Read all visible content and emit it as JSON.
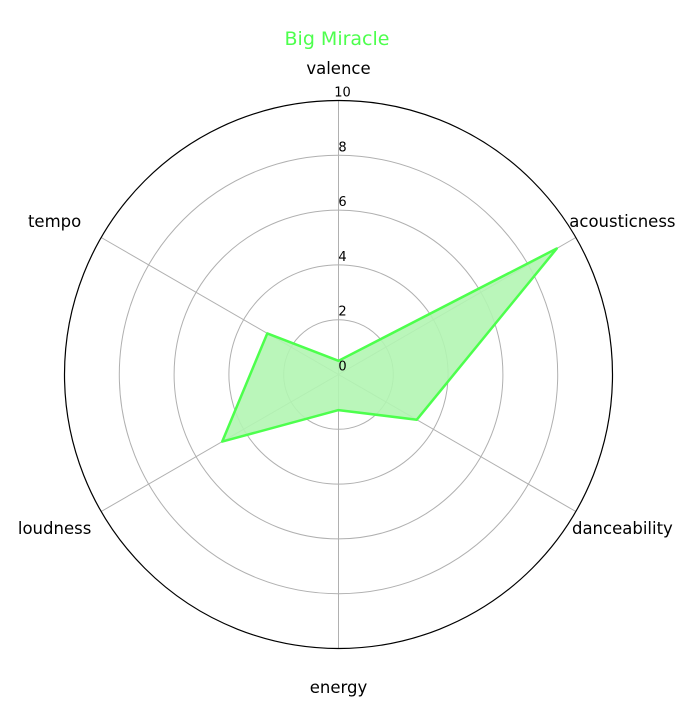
{
  "chart_data": {
    "type": "radar",
    "title": "Big Miracle",
    "axes": [
      "valence",
      "acousticness",
      "danceability",
      "energy",
      "loudness",
      "tempo"
    ],
    "series": [
      {
        "values": [
          0.5,
          9.2,
          3.3,
          1.3,
          4.9,
          3.0
        ]
      }
    ],
    "rmax": 10,
    "ticks": [
      "0",
      "2",
      "4",
      "6",
      "8",
      "10"
    ],
    "tick_values": [
      0,
      2,
      4,
      6,
      8,
      10
    ],
    "grid": true,
    "colors": {
      "series": "#4dff4d",
      "fill": "#b2f5b2",
      "title": "#4dff4d"
    }
  }
}
